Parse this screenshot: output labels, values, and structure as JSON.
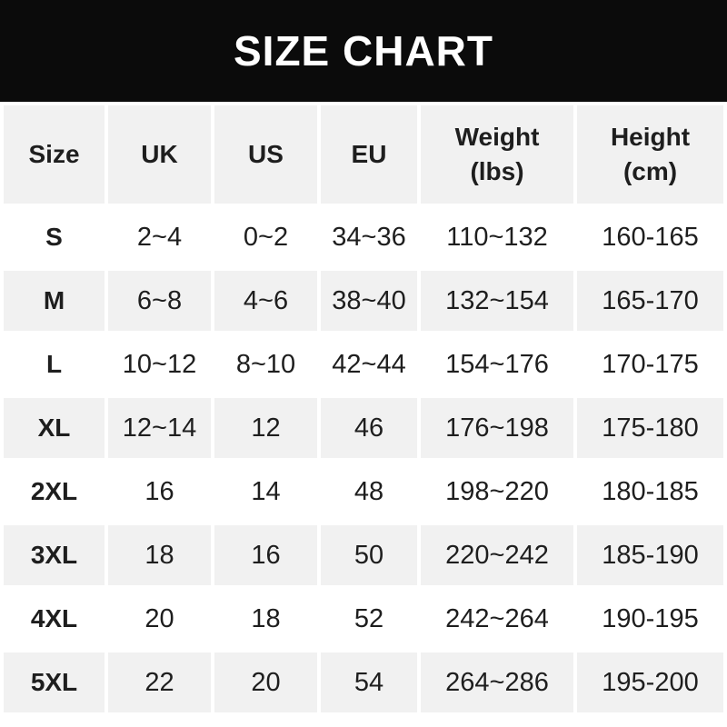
{
  "title": "SIZE CHART",
  "colors": {
    "title_bar_bg": "#0b0b0b",
    "title_text": "#ffffff",
    "row_alt_bg": "#f1f1f1",
    "row_bg": "#ffffff",
    "text": "#1e1e1e"
  },
  "chart_data": {
    "type": "table",
    "title": "SIZE CHART",
    "columns": [
      {
        "label": "Size",
        "sub": ""
      },
      {
        "label": "UK",
        "sub": ""
      },
      {
        "label": "US",
        "sub": ""
      },
      {
        "label": "EU",
        "sub": ""
      },
      {
        "label": "Weight",
        "sub": "(lbs)"
      },
      {
        "label": "Height",
        "sub": "(cm)"
      }
    ],
    "rows": [
      [
        "S",
        "2~4",
        "0~2",
        "34~36",
        "110~132",
        "160-165"
      ],
      [
        "M",
        "6~8",
        "4~6",
        "38~40",
        "132~154",
        "165-170"
      ],
      [
        "L",
        "10~12",
        "8~10",
        "42~44",
        "154~176",
        "170-175"
      ],
      [
        "XL",
        "12~14",
        "12",
        "46",
        "176~198",
        "175-180"
      ],
      [
        "2XL",
        "16",
        "14",
        "48",
        "198~220",
        "180-185"
      ],
      [
        "3XL",
        "18",
        "16",
        "50",
        "220~242",
        "185-190"
      ],
      [
        "4XL",
        "20",
        "18",
        "52",
        "242~264",
        "190-195"
      ],
      [
        "5XL",
        "22",
        "20",
        "54",
        "264~286",
        "195-200"
      ]
    ]
  }
}
